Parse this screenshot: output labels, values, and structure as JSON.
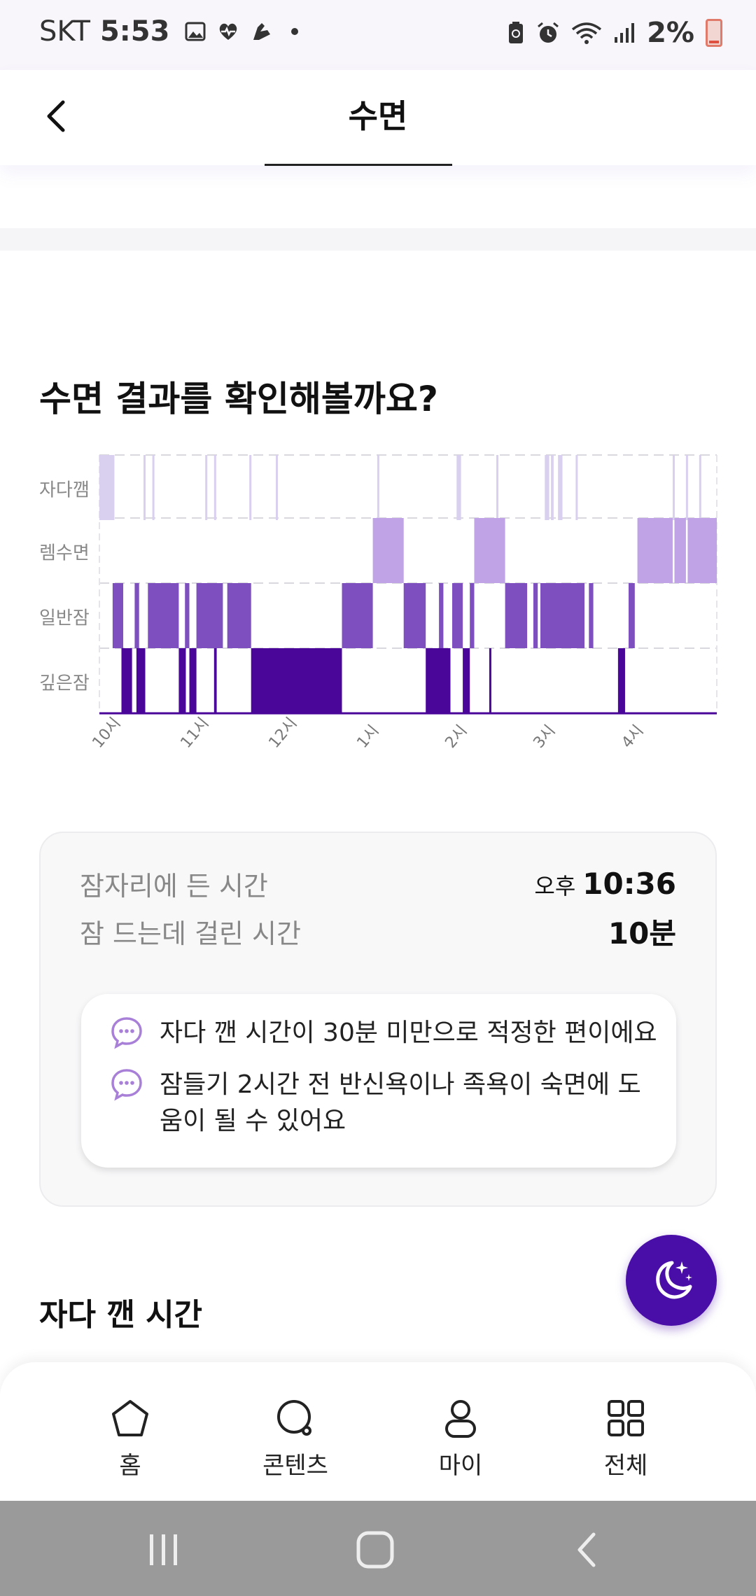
{
  "status_bar": {
    "carrier": "SKT",
    "time": "5:53",
    "battery": "2%"
  },
  "header": {
    "title": "수면"
  },
  "section_title": "수면 결과를 확인해볼까요?",
  "chart_data": {
    "type": "heatmap",
    "y_categories": [
      "자다깸",
      "렘수면",
      "일반잠",
      "깊은잠"
    ],
    "x_ticks": [
      "10시",
      "11시",
      "12시",
      "1시",
      "2시",
      "3시",
      "4시"
    ],
    "colors": {
      "awake": "#d9cfee",
      "rem": "#bfa3e6",
      "light": "#7d4fbf",
      "deep": "#4a0699"
    },
    "x_range_hours": [
      22.0,
      29.0
    ],
    "segments": {
      "awake": [
        [
          22.0,
          22.17
        ],
        [
          22.5,
          22.52
        ],
        [
          22.6,
          22.62
        ],
        [
          23.2,
          23.22
        ],
        [
          23.3,
          23.32
        ],
        [
          23.7,
          23.72
        ],
        [
          24.0,
          24.02
        ],
        [
          25.15,
          25.17
        ],
        [
          26.05,
          26.1
        ],
        [
          26.5,
          26.52
        ],
        [
          27.05,
          27.1
        ],
        [
          27.12,
          27.15
        ],
        [
          27.2,
          27.25
        ],
        [
          27.4,
          27.42
        ],
        [
          28.5,
          28.52
        ],
        [
          28.65,
          28.67
        ],
        [
          28.8,
          28.82
        ]
      ],
      "rem": [
        [
          25.1,
          25.45
        ],
        [
          26.25,
          26.6
        ],
        [
          28.1,
          28.5
        ],
        [
          28.52,
          28.65
        ],
        [
          28.67,
          29.0
        ]
      ],
      "light": [
        [
          22.15,
          22.27
        ],
        [
          22.4,
          22.45
        ],
        [
          22.55,
          22.9
        ],
        [
          22.97,
          23.02
        ],
        [
          23.1,
          23.4
        ],
        [
          23.45,
          23.72
        ],
        [
          24.75,
          25.1
        ],
        [
          25.45,
          25.7
        ],
        [
          25.85,
          25.9
        ],
        [
          26.0,
          26.12
        ],
        [
          26.2,
          26.25
        ],
        [
          26.6,
          26.85
        ],
        [
          26.92,
          26.97
        ],
        [
          27.0,
          27.5
        ],
        [
          27.55,
          27.6
        ],
        [
          28.0,
          28.07
        ]
      ],
      "deep": [
        [
          22.25,
          22.37
        ],
        [
          22.42,
          22.52
        ],
        [
          22.9,
          22.98
        ],
        [
          23.02,
          23.1
        ],
        [
          23.3,
          23.33
        ],
        [
          23.72,
          24.75
        ],
        [
          25.7,
          25.98
        ],
        [
          26.12,
          26.2
        ],
        [
          26.42,
          26.44
        ],
        [
          27.88,
          27.96
        ]
      ]
    }
  },
  "summary": {
    "bedtime_label": "잠자리에 든 시간",
    "bedtime_ampm": "오후",
    "bedtime_value": "10:36",
    "latency_label": "잠 드는데 걸린 시간",
    "latency_value": "10분"
  },
  "tips": [
    {
      "icon": "chat-bubble-icon",
      "text": "자다 깬 시간이 30분 미만으로 적정한 편이에요"
    },
    {
      "icon": "chat-bubble-icon",
      "text": "잠들기 2시간 전 반신욕이나 족욕이 숙면에 도움이 될 수 있어요"
    }
  ],
  "section2_title": "자다 깬 시간",
  "fab": {
    "icon": "moon-stars-icon"
  },
  "bottom_nav": [
    {
      "icon": "home-icon",
      "label": "홈"
    },
    {
      "icon": "content-search-icon",
      "label": "콘텐츠"
    },
    {
      "icon": "person-icon",
      "label": "마이"
    },
    {
      "icon": "grid-icon",
      "label": "전체"
    }
  ]
}
